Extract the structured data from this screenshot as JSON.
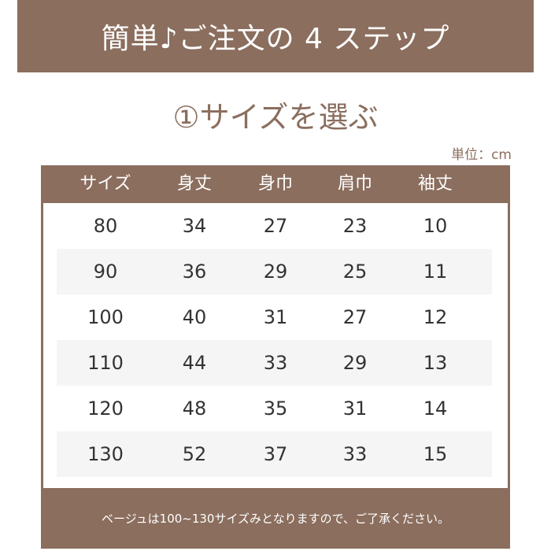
{
  "colors": {
    "brand": "#8b6e5e",
    "stripe": "#f5f5f5"
  },
  "banner": {
    "title": "簡単♪ご注文の 4 ステップ"
  },
  "step": {
    "title": "①サイズを選ぶ"
  },
  "unit_label": "単位：cm",
  "table": {
    "headers": [
      "サイズ",
      "身丈",
      "身巾",
      "肩巾",
      "袖丈"
    ],
    "rows": [
      [
        "80",
        "34",
        "27",
        "23",
        "10"
      ],
      [
        "90",
        "36",
        "29",
        "25",
        "11"
      ],
      [
        "100",
        "40",
        "31",
        "27",
        "12"
      ],
      [
        "110",
        "44",
        "33",
        "29",
        "13"
      ],
      [
        "120",
        "48",
        "35",
        "31",
        "14"
      ],
      [
        "130",
        "52",
        "37",
        "33",
        "15"
      ]
    ]
  },
  "note": "ベージュは100~130サイズみとなりますので、ご了承ください。"
}
